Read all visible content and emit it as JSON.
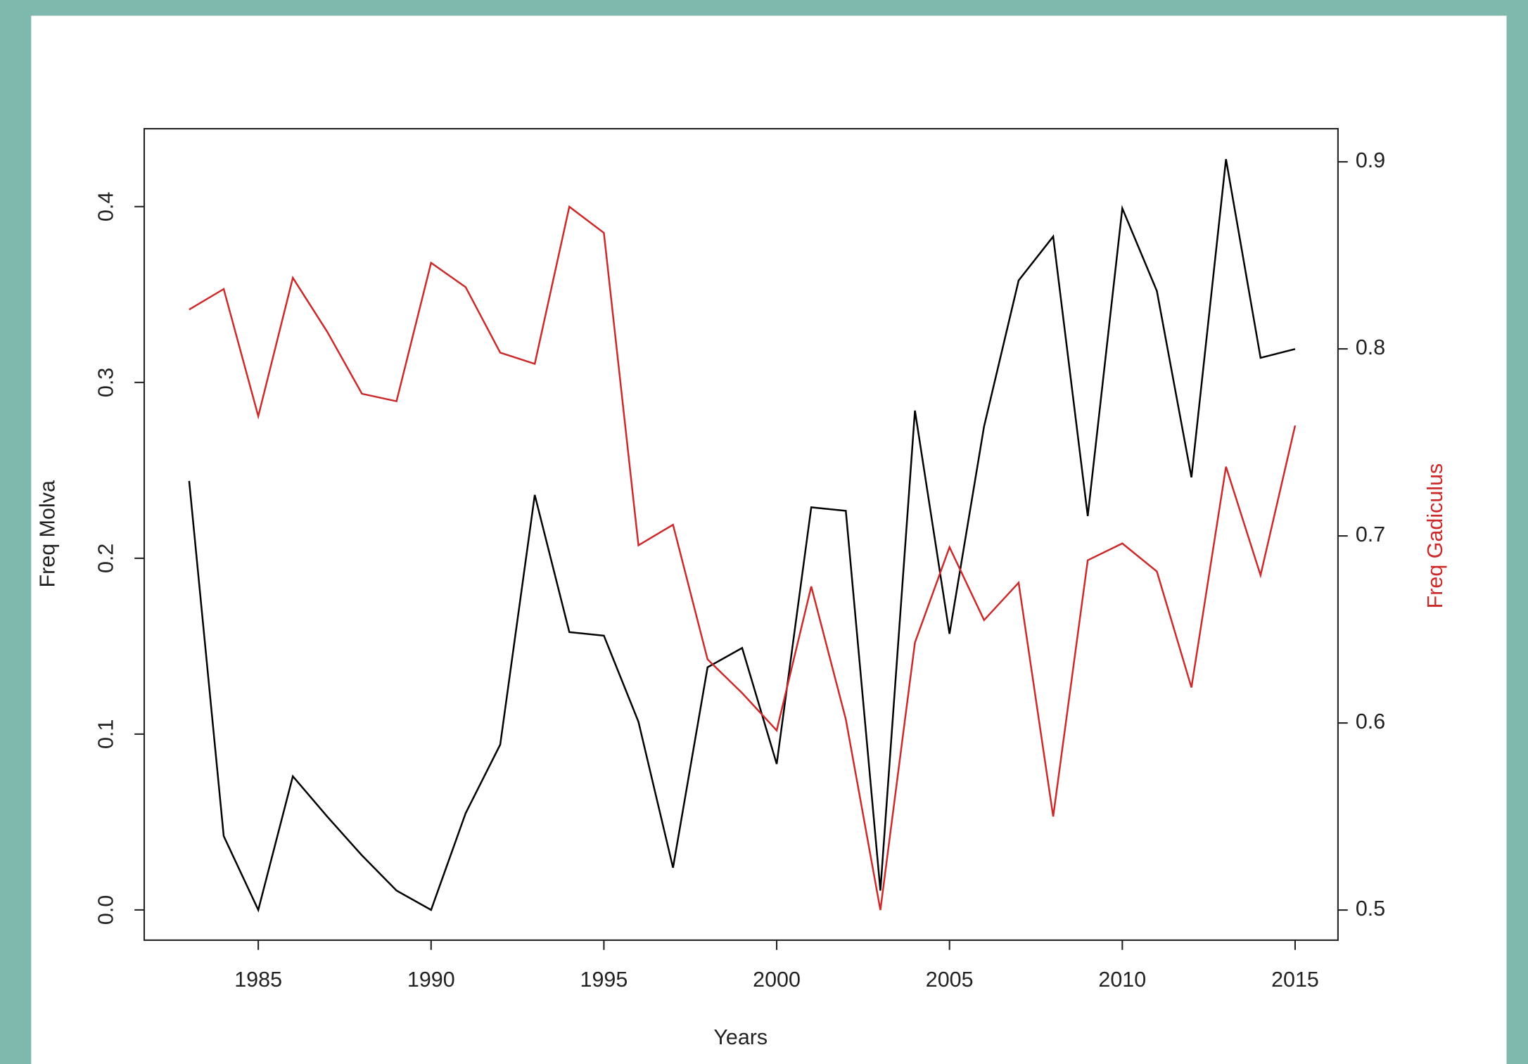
{
  "chart_data": {
    "type": "line",
    "x_label": "Years",
    "y_label": "Freq Molva",
    "y2_label": "Freq Gadiculus",
    "x": [
      1983,
      1984,
      1985,
      1986,
      1987,
      1988,
      1989,
      1990,
      1991,
      1992,
      1993,
      1994,
      1995,
      1996,
      1997,
      1998,
      1999,
      2000,
      2001,
      2002,
      2003,
      2004,
      2005,
      2006,
      2007,
      2008,
      2009,
      2010,
      2011,
      2012,
      2013,
      2014,
      2015
    ],
    "series": [
      {
        "name": "Freq Molva",
        "color": "#000000",
        "axis": "y",
        "values": [
          0.244,
          0.042,
          0.0,
          0.076,
          0.053,
          0.031,
          0.011,
          0.0,
          0.055,
          0.094,
          0.236,
          0.158,
          0.156,
          0.107,
          0.024,
          0.138,
          0.149,
          0.083,
          0.229,
          0.227,
          0.011,
          0.284,
          0.157,
          0.275,
          0.358,
          0.383,
          0.224,
          0.399,
          0.352,
          0.246,
          0.427,
          0.314,
          0.319
        ]
      },
      {
        "name": "Freq Gadiculus",
        "color": "#cc2a2a",
        "axis": "y2",
        "values": [
          0.821,
          0.832,
          0.764,
          0.838,
          0.809,
          0.776,
          0.772,
          0.846,
          0.833,
          0.798,
          0.792,
          0.876,
          0.862,
          0.695,
          0.706,
          0.634,
          0.616,
          0.596,
          0.673,
          0.602,
          0.5,
          0.643,
          0.694,
          0.655,
          0.675,
          0.55,
          0.687,
          0.696,
          0.681,
          0.619,
          0.737,
          0.679,
          0.759
        ]
      }
    ],
    "xlim": [
      1981.7,
      2016.24
    ],
    "xticks": [
      1985,
      1990,
      1995,
      2000,
      2005,
      2010,
      2015
    ],
    "ylim": [
      -0.0172,
      0.4443
    ],
    "yticks": [
      {
        "value": 0,
        "label": "0.0"
      },
      0.1,
      0.2,
      0.3,
      0.4
    ],
    "y2lim": [
      0.4839,
      0.9177
    ],
    "y2ticks": [
      0.5,
      0.6,
      0.7,
      0.8,
      0.9
    ],
    "y2_label_color": "#cc2a2a"
  }
}
